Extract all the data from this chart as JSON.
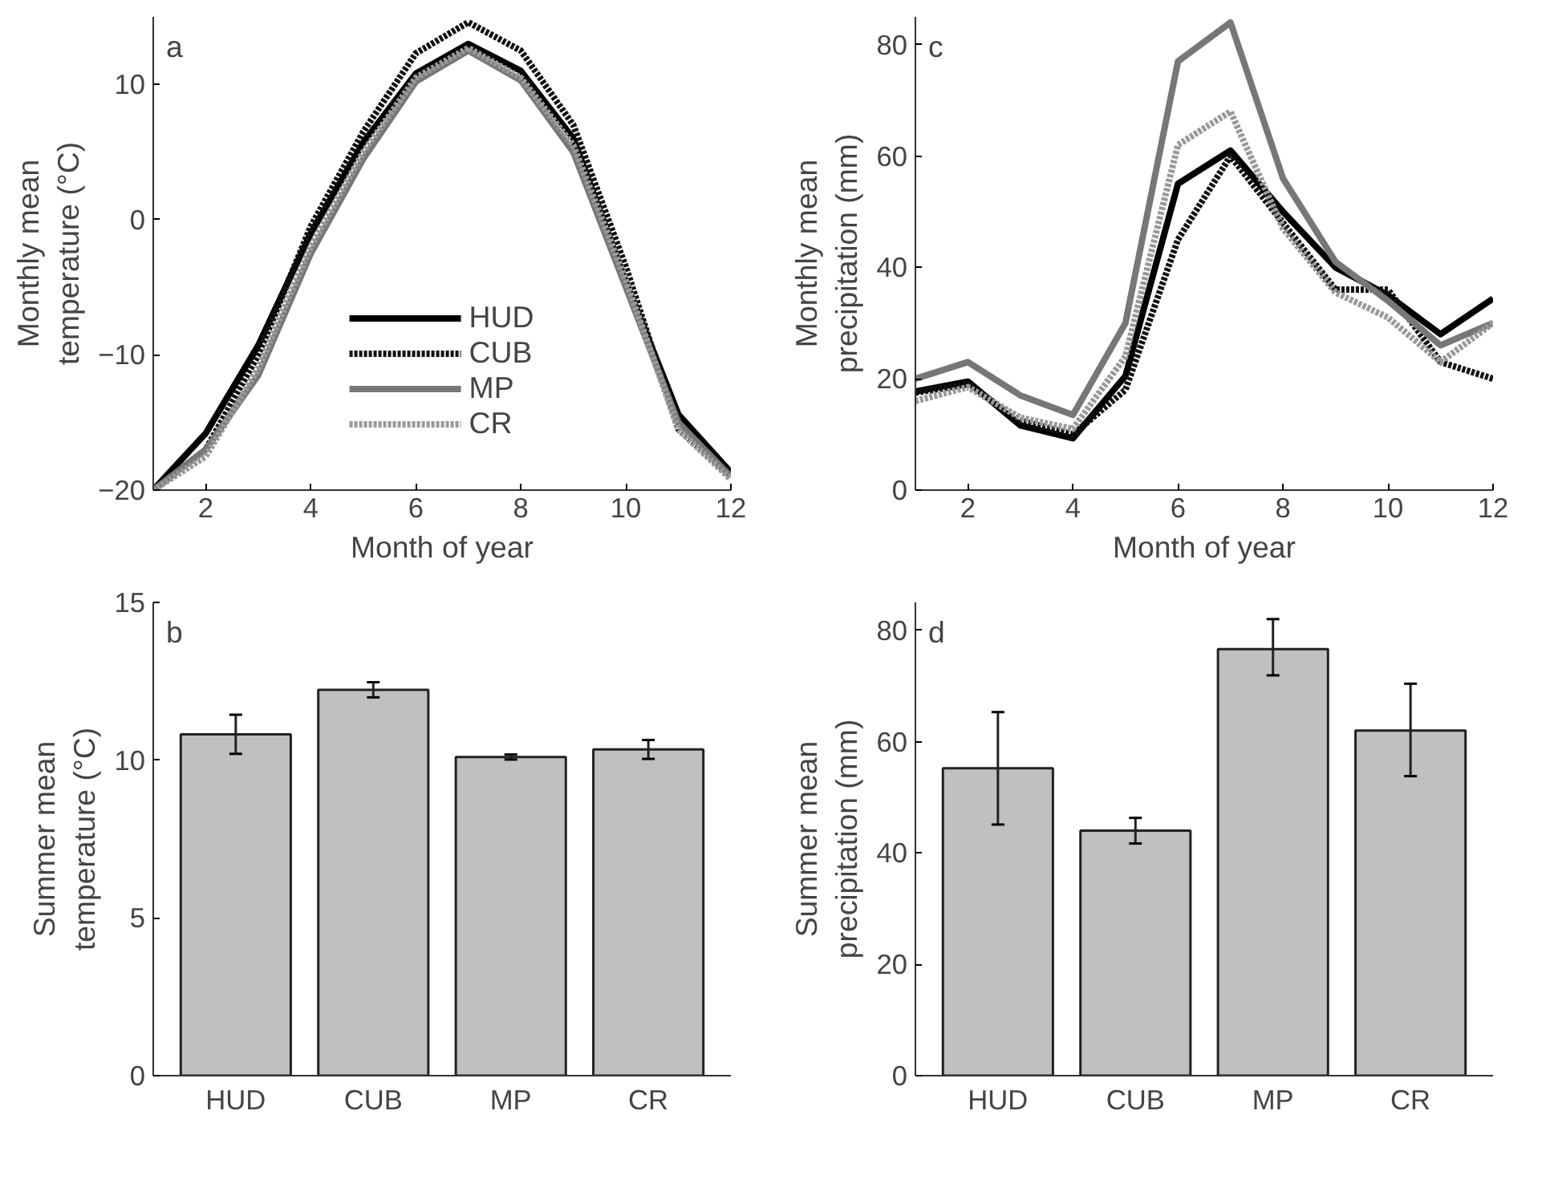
{
  "chart_data": [
    {
      "type": "line",
      "xlabel": "Month of year",
      "ylabel": "Monthly mean\ntemperature (°C)",
      "annotations": [
        "a"
      ],
      "x": [
        1,
        2,
        3,
        4,
        5,
        6,
        7,
        8,
        9,
        10,
        11,
        12
      ],
      "xlim": [
        1,
        12
      ],
      "xticks": [
        2,
        4,
        6,
        8,
        10,
        12
      ],
      "ylim": [
        -20,
        15
      ],
      "yticks": [
        {
          "value": -20,
          "label": "−20"
        },
        {
          "value": -10,
          "label": "−10"
        },
        0,
        10
      ],
      "grid": false,
      "legend": "bottom",
      "series": [
        {
          "name": "HUD",
          "color": "#000000",
          "line_style": "solid",
          "values": [
            -20,
            -15.8,
            -9.3,
            -1,
            5.7,
            10.8,
            13,
            11,
            6,
            -4.6,
            -14.4,
            -18.7
          ]
        },
        {
          "name": "CUB",
          "color": "#111111",
          "line_style": "dotted",
          "values": [
            -20,
            -17,
            -10,
            -0.5,
            6.5,
            12.3,
            14.6,
            12.5,
            7,
            -3.5,
            -15.5,
            -19
          ]
        },
        {
          "name": "MP",
          "color": "#777777",
          "line_style": "solid",
          "values": [
            -20,
            -17,
            -11.5,
            -2.5,
            4.5,
            10.2,
            12.5,
            10.3,
            5,
            -5,
            -15,
            -19
          ]
        },
        {
          "name": "CR",
          "color": "#999999",
          "line_style": "dotted",
          "values": [
            -20,
            -17.5,
            -11,
            -2,
            5,
            10.5,
            12.7,
            10.5,
            5.5,
            -4.5,
            -15.5,
            -19.2
          ]
        }
      ]
    },
    {
      "type": "line",
      "xlabel": "Month of year",
      "ylabel": "Monthly mean\nprecipitation (mm)",
      "annotations": [
        "c"
      ],
      "x": [
        1,
        2,
        3,
        4,
        5,
        6,
        7,
        8,
        9,
        10,
        11,
        12
      ],
      "xlim": [
        1,
        12
      ],
      "xticks": [
        2,
        4,
        6,
        8,
        10,
        12
      ],
      "ylim": [
        0,
        85
      ],
      "yticks": [
        0,
        20,
        40,
        60,
        80
      ],
      "grid": false,
      "series": [
        {
          "color": "#000000",
          "line_style": "solid",
          "values": [
            17.7,
            19.5,
            11.6,
            9.3,
            20.5,
            55,
            61,
            50,
            40,
            35,
            28,
            34.4
          ]
        },
        {
          "color": "#111111",
          "line_style": "dotted",
          "values": [
            17.5,
            19,
            12.5,
            10,
            18,
            45,
            60,
            48,
            36,
            36,
            23,
            20
          ]
        },
        {
          "color": "#777777",
          "line_style": "solid",
          "values": [
            20,
            23,
            17,
            13.5,
            30,
            77,
            84,
            56,
            41,
            34,
            26,
            30
          ]
        },
        {
          "color": "#999999",
          "line_style": "dotted",
          "values": [
            16,
            18.5,
            13,
            11,
            24,
            62,
            68,
            47,
            35.5,
            31,
            23,
            30
          ]
        }
      ]
    },
    {
      "type": "bar",
      "ylabel": "Summer mean\ntemperature (°C)",
      "annotations": [
        "b"
      ],
      "categories": [
        "HUD",
        "CUB",
        "MP",
        "CR"
      ],
      "values": [
        10.82,
        12.23,
        10.1,
        10.34
      ],
      "errors": [
        0.62,
        0.24,
        0.08,
        0.3
      ],
      "color": "#c0c0c0",
      "ylim": [
        0,
        15
      ],
      "yticks": [
        0,
        5,
        10,
        15
      ],
      "grid": false
    },
    {
      "type": "bar",
      "ylabel": "Summer mean\nprecipitation (mm)",
      "annotations": [
        "d"
      ],
      "categories": [
        "HUD",
        "CUB",
        "MP",
        "CR"
      ],
      "values": [
        55.2,
        44,
        76.6,
        62
      ],
      "errors": [
        [
          45.1,
          65.3
        ],
        [
          41.7,
          46.3
        ],
        [
          71.9,
          82
        ],
        [
          53.8,
          70.4
        ]
      ],
      "color": "#c0c0c0",
      "ylim": [
        0,
        85
      ],
      "yticks": [
        0,
        20,
        40,
        60,
        80
      ],
      "grid": false
    }
  ]
}
